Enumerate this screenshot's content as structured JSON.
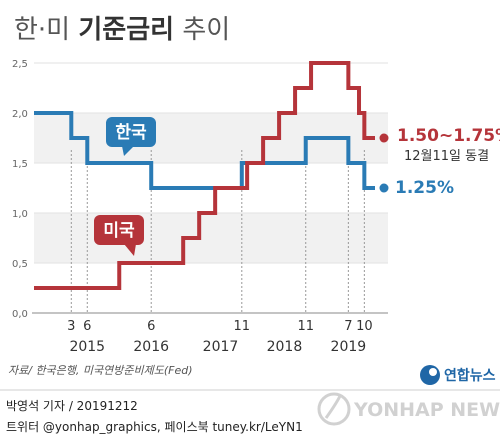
{
  "header": {
    "title_part1": "한·미 ",
    "title_part2": "기준금리",
    "title_part3": " 추이"
  },
  "chart_data": {
    "type": "line",
    "title": "한·미 기준금리 추이",
    "ylim": [
      0,
      2.5
    ],
    "y_ticks": [
      "0,0",
      "0,5",
      "1,0",
      "1,5",
      "2,0",
      "2,5"
    ],
    "x_tick_labels": [
      {
        "label": "3",
        "date": "2015-03"
      },
      {
        "label": "6",
        "date": "2015-06"
      },
      {
        "label": "6",
        "date": "2016-06"
      },
      {
        "label": "11",
        "date": "2017-11"
      },
      {
        "label": "11",
        "date": "2018-11"
      },
      {
        "label": "7",
        "date": "2019-07"
      },
      {
        "label": "10",
        "date": "2019-10"
      }
    ],
    "years": [
      {
        "label": "2015",
        "date": "2015-06"
      },
      {
        "label": "2016",
        "date": "2016-06"
      },
      {
        "label": "2017",
        "date": "2017-07"
      },
      {
        "label": "2018",
        "date": "2018-07"
      },
      {
        "label": "2019",
        "date": "2019-07"
      }
    ],
    "series": [
      {
        "name": "한국",
        "color": "#2a7bb5",
        "points": [
          [
            "2014-08",
            2.0
          ],
          [
            "2015-03",
            1.75
          ],
          [
            "2015-06",
            1.5
          ],
          [
            "2016-06",
            1.25
          ],
          [
            "2017-11",
            1.5
          ],
          [
            "2018-11",
            1.75
          ],
          [
            "2019-07",
            1.5
          ],
          [
            "2019-10",
            1.25
          ],
          [
            "2019-12",
            1.25
          ]
        ],
        "end_label": "1.25%"
      },
      {
        "name": "미국",
        "color": "#b5343a",
        "points": [
          [
            "2014-08",
            0.25
          ],
          [
            "2015-12",
            0.5
          ],
          [
            "2016-12",
            0.75
          ],
          [
            "2017-03",
            1.0
          ],
          [
            "2017-06",
            1.25
          ],
          [
            "2017-12",
            1.5
          ],
          [
            "2018-03",
            1.75
          ],
          [
            "2018-06",
            2.0
          ],
          [
            "2018-09",
            2.25
          ],
          [
            "2018-12",
            2.5
          ],
          [
            "2019-07",
            2.25
          ],
          [
            "2019-09",
            2.0
          ],
          [
            "2019-10",
            1.75
          ],
          [
            "2019-12",
            1.75
          ]
        ],
        "end_label": "1.50~1.75%",
        "end_note": "12월11일 동결"
      }
    ]
  },
  "source": "자료/ 한국은행, 미국연방준비제도(Fed)",
  "logo": {
    "text": "연합뉴스"
  },
  "footer": {
    "line1": "박영석 기자 / 20191212",
    "line2": "트위터 @yonhap_graphics, 페이스북 tuney.kr/LeYN1"
  },
  "watermark": "YONHAP NEWS"
}
